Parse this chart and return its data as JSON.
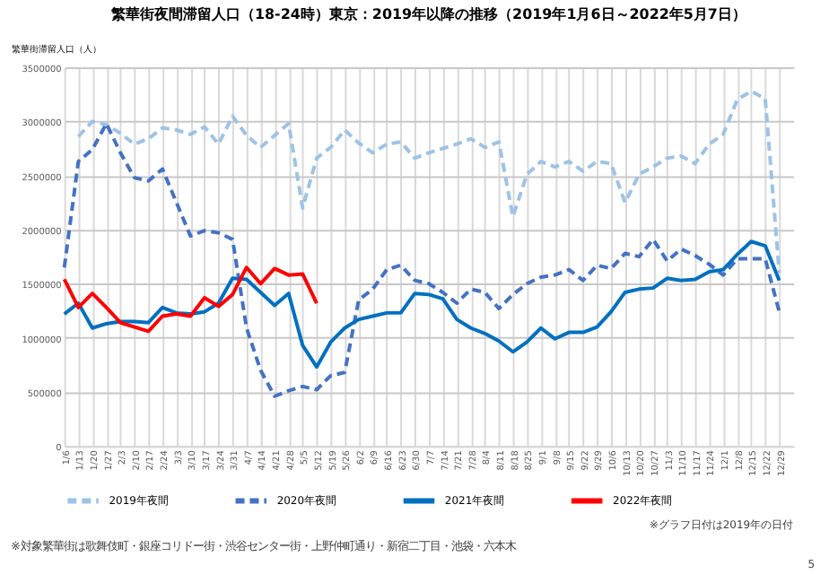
{
  "chart_data": {
    "type": "line",
    "title": "繁華街夜間滞留人口（18-24時）東京：2019年以降の推移（2019年1月6日～2022年5月7日）",
    "ylabel": "繁華街滞留人口（人）",
    "categories": [
      "1/6",
      "1/13",
      "1/20",
      "1/27",
      "2/3",
      "2/10",
      "2/17",
      "2/24",
      "3/3",
      "3/10",
      "3/17",
      "3/24",
      "3/31",
      "4/7",
      "4/14",
      "4/21",
      "4/28",
      "5/5",
      "5/12",
      "5/19",
      "5/26",
      "6/2",
      "6/9",
      "6/16",
      "6/23",
      "6/30",
      "7/7",
      "7/14",
      "7/21",
      "7/28",
      "8/4",
      "8/11",
      "8/18",
      "8/25",
      "9/1",
      "9/8",
      "9/15",
      "9/22",
      "9/29",
      "10/6",
      "10/13",
      "10/20",
      "10/27",
      "11/3",
      "11/10",
      "11/17",
      "11/24",
      "12/1",
      "12/8",
      "12/15",
      "12/22",
      "12/29"
    ],
    "series": [
      {
        "name": "2019年夜間",
        "color": "#9dc3e6",
        "line_style": "dashed",
        "values": [
          null,
          2860000,
          3000000,
          2970000,
          2890000,
          2790000,
          2840000,
          2940000,
          2920000,
          2880000,
          2950000,
          2790000,
          3050000,
          2870000,
          2760000,
          2870000,
          2980000,
          2200000,
          2660000,
          2760000,
          2920000,
          2800000,
          2710000,
          2790000,
          2810000,
          2660000,
          2710000,
          2750000,
          2790000,
          2840000,
          2760000,
          2810000,
          2120000,
          2510000,
          2630000,
          2580000,
          2630000,
          2540000,
          2630000,
          2610000,
          2250000,
          2510000,
          2580000,
          2660000,
          2680000,
          2610000,
          2790000,
          2880000,
          3200000,
          3280000,
          3210000,
          1600000
        ]
      },
      {
        "name": "2020年夜間",
        "color": "#4472c4",
        "line_style": "dashed",
        "values": [
          1650000,
          2630000,
          2740000,
          2980000,
          2710000,
          2480000,
          2450000,
          2560000,
          2250000,
          1940000,
          1990000,
          1970000,
          1910000,
          1090000,
          700000,
          460000,
          510000,
          550000,
          520000,
          650000,
          680000,
          1350000,
          1450000,
          1630000,
          1670000,
          1530000,
          1500000,
          1420000,
          1320000,
          1450000,
          1420000,
          1270000,
          1400000,
          1500000,
          1560000,
          1580000,
          1630000,
          1530000,
          1670000,
          1640000,
          1780000,
          1750000,
          1910000,
          1710000,
          1820000,
          1760000,
          1680000,
          1580000,
          1730000,
          1730000,
          1730000,
          1240000
        ]
      },
      {
        "name": "2021年夜間",
        "color": "#0070c0",
        "line_style": "solid",
        "values": [
          1220000,
          1320000,
          1090000,
          1130000,
          1150000,
          1150000,
          1140000,
          1280000,
          1230000,
          1220000,
          1240000,
          1320000,
          1550000,
          1540000,
          1420000,
          1300000,
          1410000,
          930000,
          730000,
          960000,
          1090000,
          1170000,
          1200000,
          1230000,
          1230000,
          1410000,
          1400000,
          1360000,
          1170000,
          1090000,
          1040000,
          970000,
          870000,
          960000,
          1090000,
          990000,
          1050000,
          1050000,
          1100000,
          1240000,
          1420000,
          1450000,
          1460000,
          1550000,
          1530000,
          1540000,
          1610000,
          1630000,
          1770000,
          1890000,
          1850000,
          1530000
        ]
      },
      {
        "name": "2022年夜間",
        "color": "#ff0000",
        "line_style": "solid",
        "values": [
          1540000,
          1280000,
          1410000,
          1280000,
          1140000,
          1100000,
          1060000,
          1200000,
          1220000,
          1200000,
          1370000,
          1290000,
          1400000,
          1650000,
          1500000,
          1640000,
          1580000,
          1590000,
          1320000,
          null,
          null,
          null,
          null,
          null,
          null,
          null,
          null,
          null,
          null,
          null,
          null,
          null,
          null,
          null,
          null,
          null,
          null,
          null,
          null,
          null,
          null,
          null,
          null,
          null,
          null,
          null,
          null,
          null,
          null,
          null,
          null,
          null
        ]
      }
    ],
    "ylim": [
      0,
      3500000
    ],
    "yticks": [
      0,
      500000,
      1000000,
      1500000,
      2000000,
      2500000,
      3000000,
      3500000
    ],
    "grid": true,
    "legend": "bottom",
    "marker": "none",
    "annotations": [
      "※グラフ日付は2019年の日付",
      "※対象繁華街は歌舞伎町・銀座コリドー街・渋谷センター街・上野仲町通り・新宿二丁目・池袋・六本木",
      "5"
    ]
  }
}
